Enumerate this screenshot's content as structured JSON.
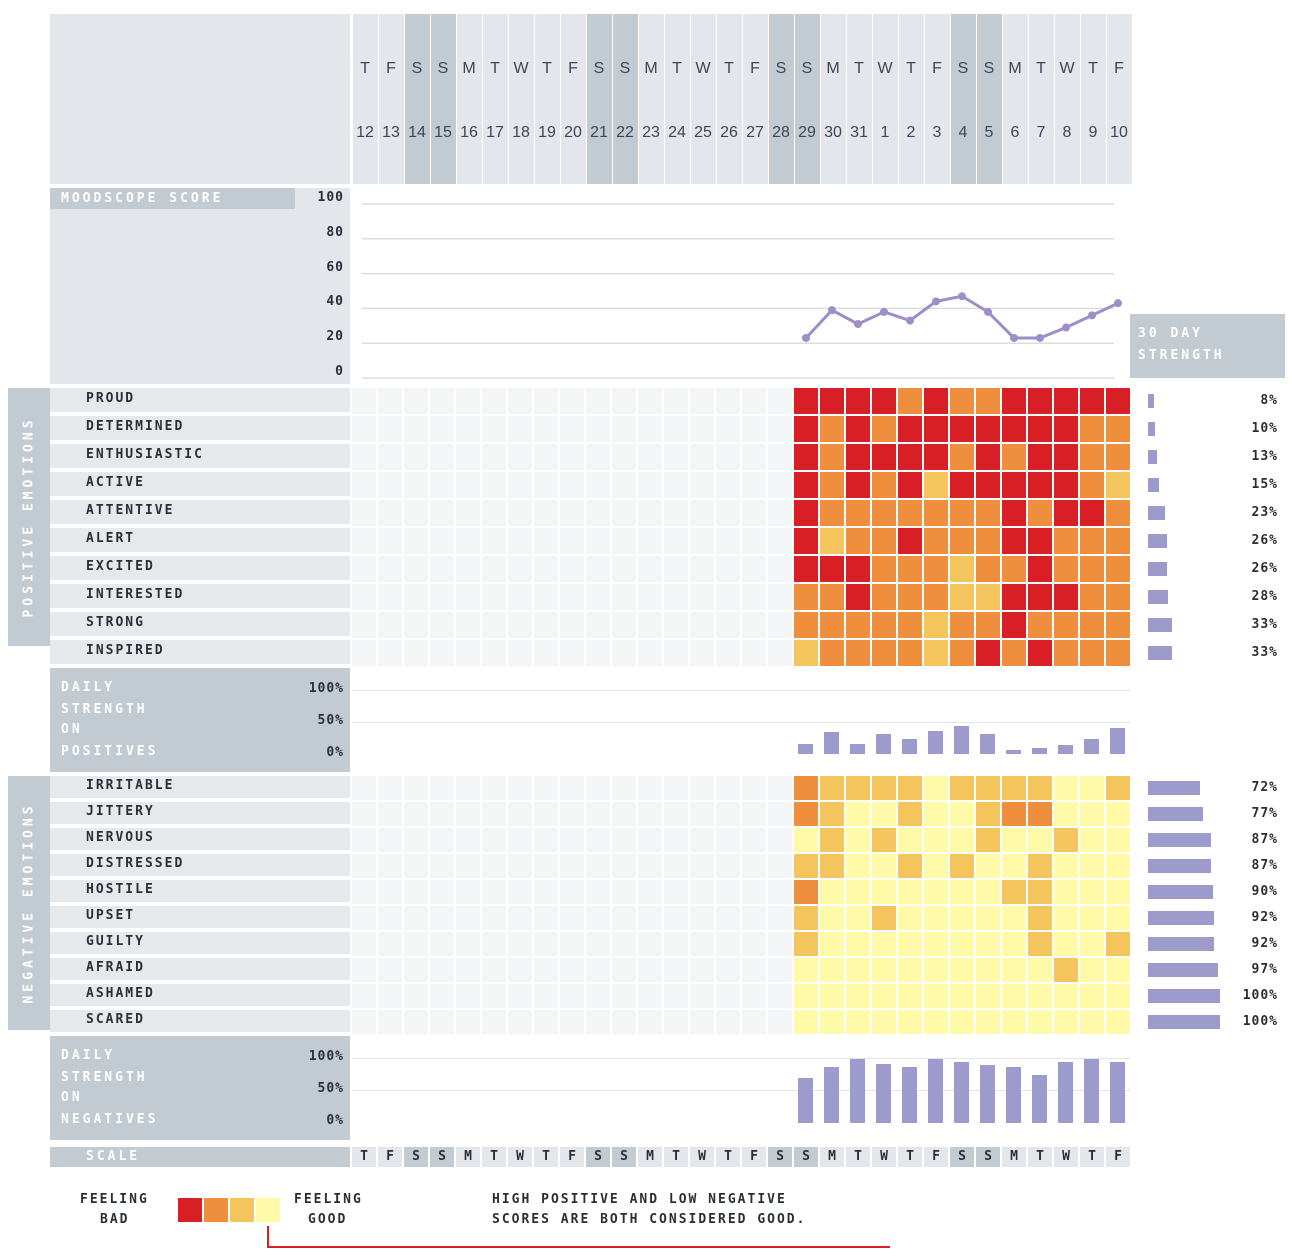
{
  "chart_data": {
    "type": "heatmap",
    "days": {
      "weekday_letters": [
        "T",
        "F",
        "S",
        "S",
        "M",
        "T",
        "W",
        "T",
        "F",
        "S",
        "S",
        "M",
        "T",
        "W",
        "T",
        "F",
        "S",
        "S",
        "M",
        "T",
        "W",
        "T",
        "F",
        "S",
        "S",
        "M",
        "T",
        "W",
        "T",
        "F"
      ],
      "day_numbers": [
        "12",
        "13",
        "14",
        "15",
        "16",
        "17",
        "18",
        "19",
        "20",
        "21",
        "22",
        "23",
        "24",
        "25",
        "26",
        "27",
        "28",
        "29",
        "30",
        "31",
        "1",
        "2",
        "3",
        "4",
        "5",
        "6",
        "7",
        "8",
        "9",
        "10"
      ],
      "weekend_columns": [
        2,
        3,
        9,
        10,
        16,
        17,
        23,
        24
      ]
    },
    "mood_score": {
      "title": "MOODSCOPE SCORE",
      "y_ticks": [
        "100",
        "80",
        "60",
        "40",
        "20",
        "0"
      ],
      "ylim": [
        0,
        100
      ],
      "start_column": 17,
      "values": [
        23,
        39,
        31,
        38,
        33,
        44,
        47,
        38,
        23,
        23,
        29,
        36,
        43
      ]
    },
    "strength_title": [
      "30 DAY",
      "STRENGTH"
    ],
    "positive": {
      "section_label": "POSITIVE EMOTIONS",
      "start_column": 17,
      "emotions": [
        {
          "name": "PROUD",
          "strength": "8%",
          "level": 8,
          "cells": [
            1,
            1,
            1,
            1,
            2,
            1,
            2,
            2,
            1,
            1,
            1,
            1,
            1
          ]
        },
        {
          "name": "DETERMINED",
          "strength": "10%",
          "level": 10,
          "cells": [
            1,
            2,
            1,
            2,
            1,
            1,
            1,
            1,
            1,
            1,
            1,
            2,
            2
          ]
        },
        {
          "name": "ENTHUSIASTIC",
          "strength": "13%",
          "level": 13,
          "cells": [
            1,
            2,
            1,
            1,
            1,
            1,
            2,
            1,
            2,
            1,
            1,
            2,
            2
          ]
        },
        {
          "name": "ACTIVE",
          "strength": "15%",
          "level": 15,
          "cells": [
            1,
            2,
            1,
            2,
            1,
            3,
            1,
            1,
            1,
            1,
            1,
            2,
            3
          ]
        },
        {
          "name": "ATTENTIVE",
          "strength": "23%",
          "level": 23,
          "cells": [
            1,
            2,
            2,
            2,
            2,
            2,
            2,
            2,
            1,
            2,
            1,
            1,
            2
          ]
        },
        {
          "name": "ALERT",
          "strength": "26%",
          "level": 26,
          "cells": [
            1,
            3,
            2,
            2,
            1,
            2,
            2,
            2,
            1,
            1,
            2,
            2,
            2
          ]
        },
        {
          "name": "EXCITED",
          "strength": "26%",
          "level": 26,
          "cells": [
            1,
            1,
            1,
            2,
            2,
            2,
            3,
            2,
            2,
            1,
            2,
            2,
            2
          ]
        },
        {
          "name": "INTERESTED",
          "strength": "28%",
          "level": 28,
          "cells": [
            2,
            2,
            1,
            2,
            2,
            2,
            3,
            3,
            1,
            1,
            1,
            2,
            2
          ]
        },
        {
          "name": "STRONG",
          "strength": "33%",
          "level": 33,
          "cells": [
            2,
            2,
            2,
            2,
            2,
            3,
            2,
            2,
            1,
            2,
            2,
            2,
            2
          ]
        },
        {
          "name": "INSPIRED",
          "strength": "33%",
          "level": 33,
          "cells": [
            3,
            2,
            2,
            2,
            2,
            3,
            2,
            1,
            2,
            1,
            2,
            2,
            2
          ]
        }
      ],
      "daily_title": [
        "DAILY",
        "STRENGTH",
        "ON",
        "POSITIVES"
      ],
      "daily_ticks": [
        "100%",
        "50%",
        "0%"
      ],
      "daily_values": [
        15,
        35,
        15,
        32,
        24,
        36,
        44,
        32,
        6,
        9,
        14,
        24,
        40
      ]
    },
    "negative": {
      "section_label": "NEGATIVE EMOTIONS",
      "start_column": 17,
      "emotions": [
        {
          "name": "IRRITABLE",
          "strength": "72%",
          "level": 72,
          "cells": [
            2,
            3,
            3,
            3,
            3,
            4,
            3,
            3,
            3,
            3,
            4,
            4,
            3
          ]
        },
        {
          "name": "JITTERY",
          "strength": "77%",
          "level": 77,
          "cells": [
            2,
            3,
            4,
            4,
            3,
            4,
            4,
            3,
            2,
            2,
            4,
            4,
            4
          ]
        },
        {
          "name": "NERVOUS",
          "strength": "87%",
          "level": 87,
          "cells": [
            4,
            3,
            4,
            3,
            4,
            4,
            4,
            3,
            4,
            4,
            3,
            4,
            4
          ]
        },
        {
          "name": "DISTRESSED",
          "strength": "87%",
          "level": 87,
          "cells": [
            3,
            3,
            4,
            4,
            3,
            4,
            3,
            4,
            4,
            3,
            4,
            4,
            4
          ]
        },
        {
          "name": "HOSTILE",
          "strength": "90%",
          "level": 90,
          "cells": [
            2,
            4,
            4,
            4,
            4,
            4,
            4,
            4,
            3,
            3,
            4,
            4,
            4
          ]
        },
        {
          "name": "UPSET",
          "strength": "92%",
          "level": 92,
          "cells": [
            3,
            4,
            4,
            3,
            4,
            4,
            4,
            4,
            4,
            3,
            4,
            4,
            4
          ]
        },
        {
          "name": "GUILTY",
          "strength": "92%",
          "level": 92,
          "cells": [
            3,
            4,
            4,
            4,
            4,
            4,
            4,
            4,
            4,
            3,
            4,
            4,
            3
          ]
        },
        {
          "name": "AFRAID",
          "strength": "97%",
          "level": 97,
          "cells": [
            4,
            4,
            4,
            4,
            4,
            4,
            4,
            4,
            4,
            4,
            3,
            4,
            4
          ]
        },
        {
          "name": "ASHAMED",
          "strength": "100%",
          "level": 100,
          "cells": [
            4,
            4,
            4,
            4,
            4,
            4,
            4,
            4,
            4,
            4,
            4,
            4,
            4
          ]
        },
        {
          "name": "SCARED",
          "strength": "100%",
          "level": 100,
          "cells": [
            4,
            4,
            4,
            4,
            4,
            4,
            4,
            4,
            4,
            4,
            4,
            4,
            4
          ]
        }
      ],
      "daily_title": [
        "DAILY",
        "STRENGTH",
        "ON",
        "NEGATIVES"
      ],
      "daily_ticks": [
        "100%",
        "50%",
        "0%"
      ],
      "daily_values": [
        70,
        88,
        100,
        92,
        88,
        100,
        95,
        90,
        88,
        75,
        95,
        100,
        95
      ]
    },
    "scale_label": "SCALE",
    "legend": {
      "left": [
        "FEELING",
        "BAD"
      ],
      "right": [
        "FEELING",
        "GOOD"
      ],
      "note": [
        "HIGH POSITIVE AND LOW NEGATIVE",
        "SCORES ARE BOTH CONSIDERED GOOD."
      ]
    },
    "colors": {
      "1": "#d81f26",
      "2": "#ef8f3e",
      "3": "#f4c55c",
      "4": "#fefaa8",
      "line": "#9d8ec8",
      "bar": "#9d9bcb"
    }
  }
}
